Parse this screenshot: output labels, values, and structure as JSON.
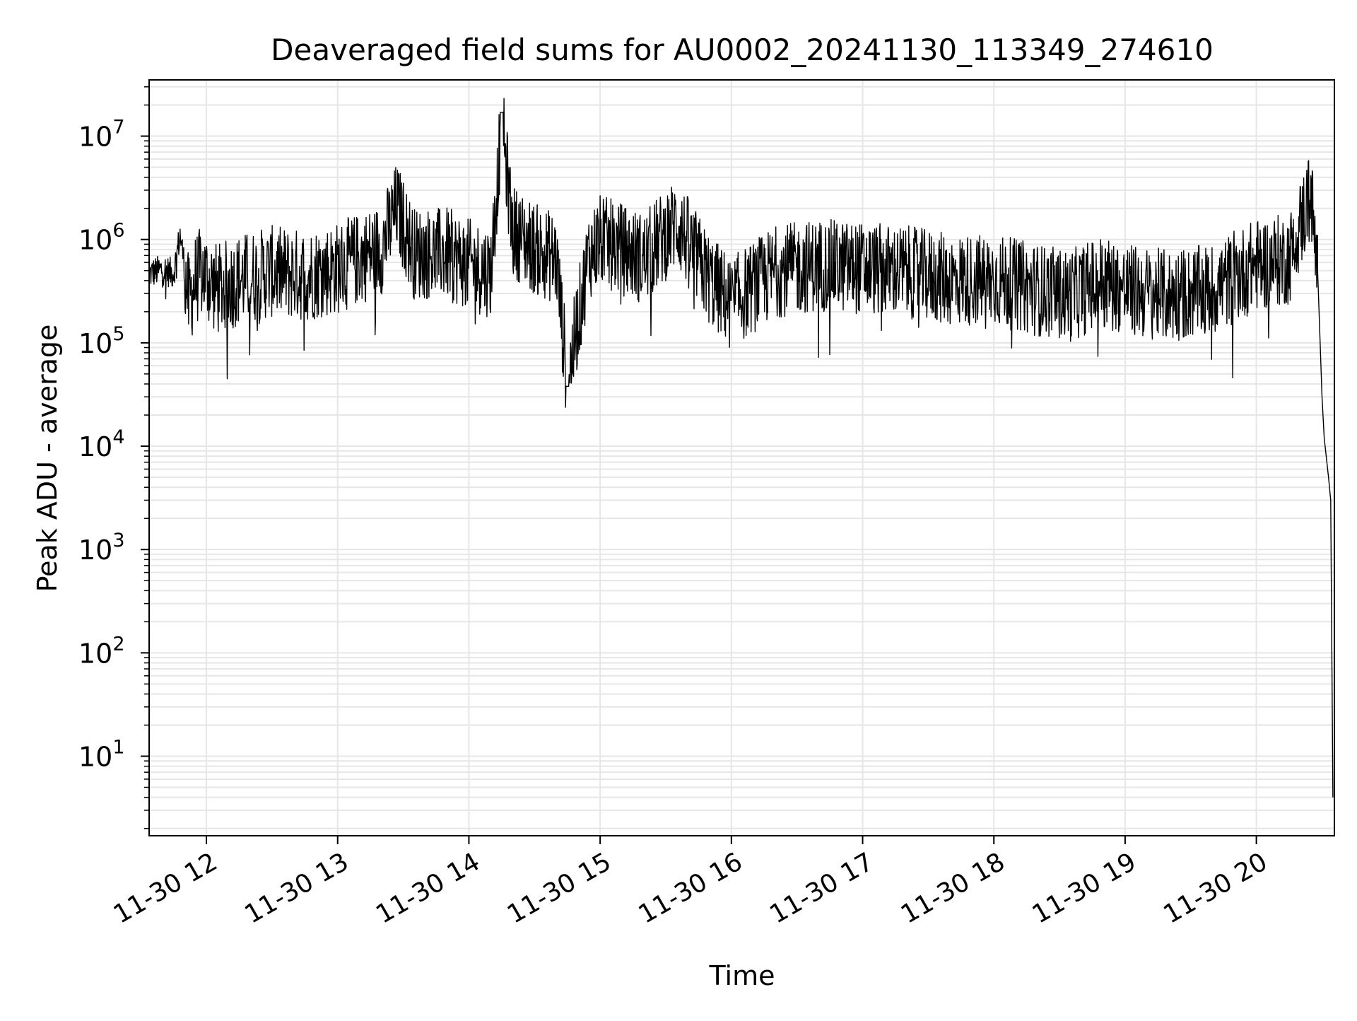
{
  "chart_data": {
    "type": "line",
    "title": "Deaveraged field sums for AU0002_20241130_113349_274610",
    "xlabel": "Time",
    "ylabel": "Peak ADU - average",
    "yscale": "log",
    "ylim": [
      1.7,
      35000000
    ],
    "xlim": [
      "2024-11-30 11:33:49",
      "2024-11-30 20:35:40"
    ],
    "grid": "major and minor",
    "legend": "none",
    "line_color": "#000000",
    "grid_color": "#e6e6e6",
    "x_tick_labels": [
      "11-30 12",
      "11-30 13",
      "11-30 14",
      "11-30 15",
      "11-30 16",
      "11-30 17",
      "11-30 18",
      "11-30 19",
      "11-30 20"
    ],
    "x_tick_times": [
      "2024-11-30 12:00",
      "2024-11-30 13:00",
      "2024-11-30 14:00",
      "2024-11-30 15:00",
      "2024-11-30 16:00",
      "2024-11-30 17:00",
      "2024-11-30 18:00",
      "2024-11-30 19:00",
      "2024-11-30 20:00"
    ],
    "y_tick_values": [
      10,
      100,
      1000,
      10000,
      100000,
      1000000,
      10000000
    ],
    "y_tick_labels": [
      {
        "base": "10",
        "exp": "1"
      },
      {
        "base": "10",
        "exp": "2"
      },
      {
        "base": "10",
        "exp": "3"
      },
      {
        "base": "10",
        "exp": "4"
      },
      {
        "base": "10",
        "exp": "5"
      },
      {
        "base": "10",
        "exp": "6"
      },
      {
        "base": "10",
        "exp": "7"
      }
    ],
    "series": [
      {
        "x": [
          "2024-11-30 11:34",
          "2024-11-30 11:40",
          "2024-11-30 11:45",
          "2024-11-30 11:48",
          "2024-11-30 11:52",
          "2024-11-30 11:55",
          "2024-11-30 11:58",
          "2024-11-30 12:05",
          "2024-11-30 12:15",
          "2024-11-30 12:30",
          "2024-11-30 12:45",
          "2024-11-30 13:00",
          "2024-11-30 13:10",
          "2024-11-30 13:20",
          "2024-11-30 13:27",
          "2024-11-30 13:35",
          "2024-11-30 13:50",
          "2024-11-30 14:00",
          "2024-11-30 14:10",
          "2024-11-30 14:15",
          "2024-11-30 14:20",
          "2024-11-30 14:30",
          "2024-11-30 14:40",
          "2024-11-30 14:45",
          "2024-11-30 14:55",
          "2024-11-30 15:00",
          "2024-11-30 15:20",
          "2024-11-30 15:35",
          "2024-11-30 15:50",
          "2024-11-30 16:00",
          "2024-11-30 16:20",
          "2024-11-30 16:40",
          "2024-11-30 17:00",
          "2024-11-30 17:20",
          "2024-11-30 17:40",
          "2024-11-30 18:00",
          "2024-11-30 18:20",
          "2024-11-30 18:35",
          "2024-11-30 18:50",
          "2024-11-30 19:00",
          "2024-11-30 19:20",
          "2024-11-30 19:40",
          "2024-11-30 20:00",
          "2024-11-30 20:15",
          "2024-11-30 20:25",
          "2024-11-30 20:28",
          "2024-11-30 20:30",
          "2024-11-30 20:31",
          "2024-11-30 20:33",
          "2024-11-30 20:34",
          "2024-11-30 20:35"
        ],
        "y": [
          500000,
          550000,
          500000,
          1200000,
          300000,
          500000,
          600000,
          400000,
          500000,
          600000,
          550000,
          650000,
          800000,
          1000000,
          2500000,
          900000,
          900000,
          700000,
          600000,
          17000000,
          1500000,
          1000000,
          800000,
          50000,
          900000,
          1200000,
          800000,
          1800000,
          500000,
          300000,
          600000,
          700000,
          650000,
          600000,
          500000,
          500000,
          400000,
          350000,
          500000,
          400000,
          350000,
          400000,
          700000,
          800000,
          3500000,
          500000,
          30000,
          12000,
          5000,
          3000,
          4
        ]
      }
    ]
  }
}
